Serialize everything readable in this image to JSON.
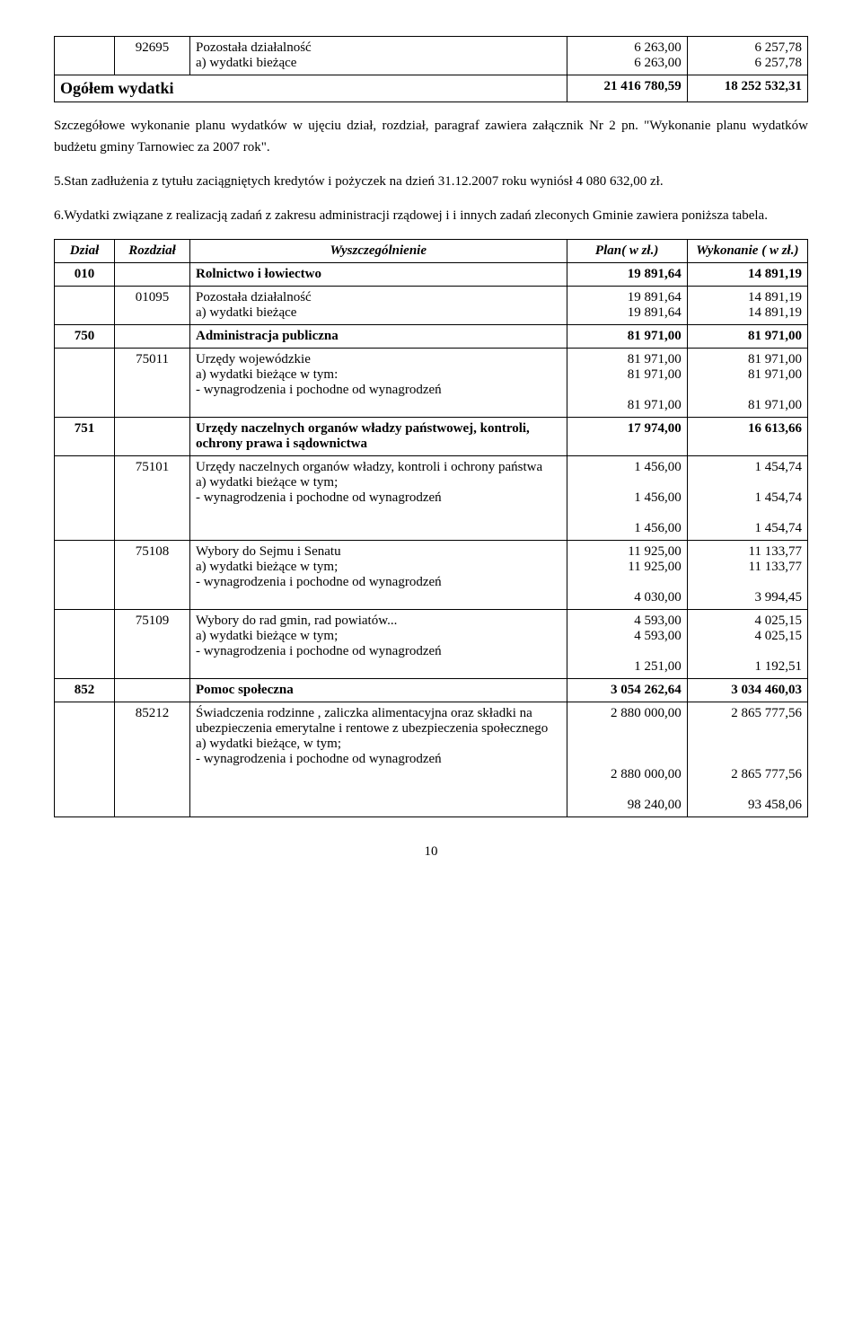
{
  "topTable": {
    "row": {
      "dzial": "",
      "rozdz": "92695",
      "wysz": "Pozostała działalność\na) wydatki bieżące",
      "plan": "6 263,00\n6 263,00",
      "wyk": "6 257,78\n6 257,78"
    },
    "total": {
      "label": "Ogółem  wydatki",
      "plan": "21 416 780,59",
      "wyk": "18 252 532,31"
    }
  },
  "paragraphs": {
    "p1": "Szczegółowe wykonanie planu wydatków w ujęciu dział, rozdział, paragraf zawiera załącznik Nr 2 pn. \"Wykonanie planu wydatków budżetu gminy Tarnowiec za 2007 rok\".",
    "p2": "5.Stan zadłużenia z tytułu zaciągniętych kredytów i pożyczek na dzień 31.12.2007 roku wyniósł 4 080 632,00 zł.",
    "p3": "6.Wydatki związane z realizacją zadań z zakresu administracji rządowej i i innych zadań zleconych Gminie zawiera poniższa tabela."
  },
  "headers": {
    "dzial": "Dział",
    "rozdz": "Rozdział",
    "wysz": "Wyszczególnienie",
    "plan": "Plan( w zł.)",
    "wyk": "Wykonanie ( w zł.)"
  },
  "rows": [
    {
      "dzial": "010",
      "rozdz": "",
      "wysz": "Rolnictwo i łowiectwo",
      "plan": "19 891,64",
      "wyk": "14 891,19",
      "bold": true
    },
    {
      "dzial": "",
      "rozdz": "01095",
      "wysz": "Pozostała działalność\na) wydatki bieżące",
      "plan": "19 891,64\n19 891,64",
      "wyk": "14 891,19\n14 891,19"
    },
    {
      "dzial": "750",
      "rozdz": "",
      "wysz": "Administracja publiczna",
      "plan": "81 971,00",
      "wyk": "81 971,00",
      "bold": true
    },
    {
      "dzial": "",
      "rozdz": "75011",
      "wysz": "Urzędy wojewódzkie\na) wydatki bieżące w tym:\n- wynagrodzenia i pochodne od wynagrodzeń",
      "plan": "81 971,00\n81 971,00\n\n81 971,00",
      "wyk": "81 971,00\n81 971,00\n\n81 971,00"
    },
    {
      "dzial": "751",
      "rozdz": "",
      "wysz": "Urzędy naczelnych organów władzy państwowej, kontroli, ochrony prawa i sądownictwa",
      "plan": "17 974,00",
      "wyk": "16 613,66",
      "bold": true
    },
    {
      "dzial": "",
      "rozdz": "75101",
      "wysz": "Urzędy naczelnych organów  władzy, kontroli i ochrony państwa\na) wydatki bieżące w tym;\n- wynagrodzenia i pochodne od wynagrodzeń",
      "plan": "1 456,00\n\n1 456,00\n\n1 456,00",
      "wyk": "1 454,74\n\n1 454,74\n\n1 454,74"
    },
    {
      "dzial": "",
      "rozdz": "75108",
      "wysz": "Wybory do Sejmu i Senatu\na) wydatki bieżące w tym;\n- wynagrodzenia i pochodne od wynagrodzeń",
      "plan": "11 925,00\n11 925,00\n\n4 030,00",
      "wyk": "11 133,77\n11 133,77\n\n3 994,45"
    },
    {
      "dzial": "",
      "rozdz": "75109",
      "wysz": "Wybory do rad gmin, rad powiatów...\na) wydatki bieżące w tym;\n- wynagrodzenia i pochodne od wynagrodzeń",
      "plan": "4 593,00\n4 593,00\n\n1 251,00",
      "wyk": "4 025,15\n4 025,15\n\n1 192,51"
    },
    {
      "dzial": "852",
      "rozdz": "",
      "wysz": "Pomoc społeczna",
      "plan": "3 054 262,64",
      "wyk": "3 034 460,03",
      "bold": true
    },
    {
      "dzial": "",
      "rozdz": "85212",
      "wysz": "Świadczenia rodzinne , zaliczka alimentacyjna oraz składki na ubezpieczenia emerytalne i rentowe z ubezpieczenia społecznego\na) wydatki bieżące, w tym;\n- wynagrodzenia i pochodne od wynagrodzeń",
      "plan": "2 880 000,00\n\n\n\n2 880 000,00\n\n98 240,00",
      "wyk": "2 865 777,56\n\n\n\n2 865 777,56\n\n93 458,06"
    }
  ],
  "pageNumber": "10"
}
